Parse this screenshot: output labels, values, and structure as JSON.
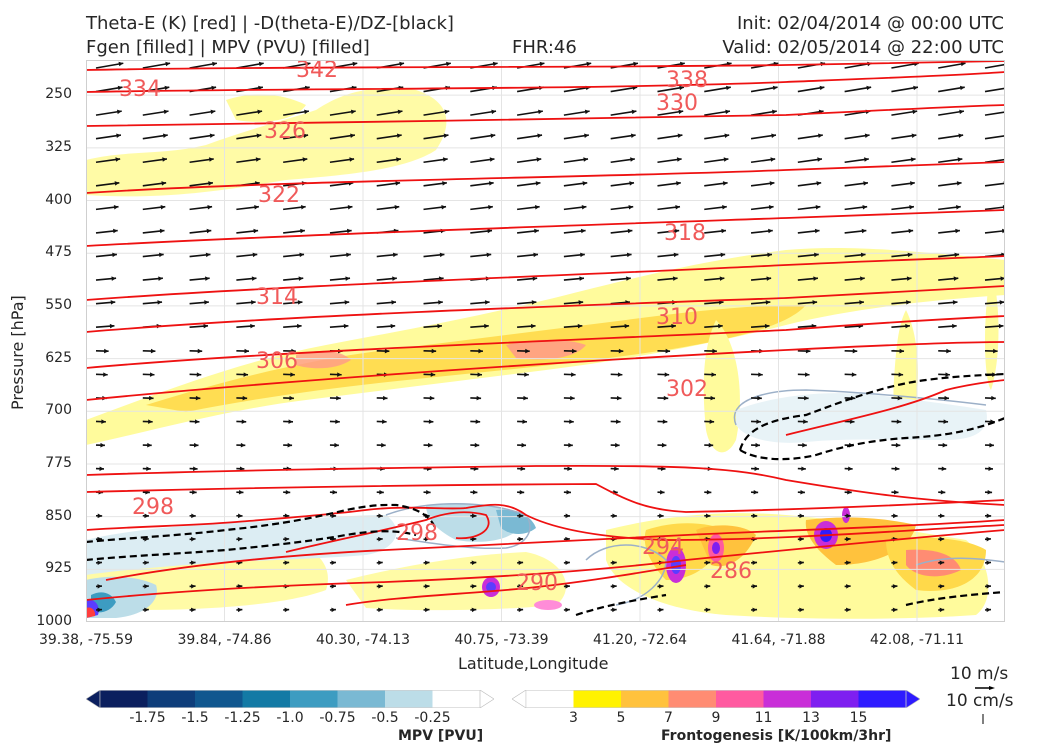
{
  "header": {
    "title_left_1": "Theta-E (K) [red] | -D(theta-E)/DZ-[black]",
    "title_left_2": "Fgen [filled] | MPV (PVU) [filled]",
    "title_center": "FHR:46",
    "title_right_1": "Init: 02/04/2014 @ 00:00 UTC",
    "title_right_2": "Valid: 02/05/2014 @ 22:00 UTC"
  },
  "chart_data": {
    "type": "cross-section",
    "xlabel": "Latitude,Longitude",
    "ylabel": "Pressure [hPa]",
    "x_ticks": [
      "39.38, -75.59",
      "39.84, -74.86",
      "40.30, -74.13",
      "40.75, -73.39",
      "41.20, -72.64",
      "41.64, -71.88",
      "42.08, -71.11"
    ],
    "y_ticks": [
      250,
      325,
      400,
      475,
      550,
      625,
      700,
      775,
      850,
      925,
      1000
    ],
    "ylim": [
      1000,
      200
    ],
    "grid": true,
    "theta_e_labels": [
      "334",
      "338",
      "330",
      "326",
      "322",
      "318",
      "314",
      "310",
      "306",
      "302",
      "298",
      "298",
      "294",
      "290",
      "286",
      "342"
    ],
    "vector_reference": {
      "speed_label": "10 m/s",
      "vertical_label": "10 cm/s"
    },
    "mpv_colorbar": {
      "label": "MPV [PVU]",
      "ticks": [
        "-1.75",
        "-1.5",
        "-1.25",
        "-1.0",
        "-0.75",
        "-0.5",
        "-0.25"
      ],
      "colors": [
        "#0b1f5e",
        "#0e3d7a",
        "#10578f",
        "#137aa5",
        "#3d9cc1",
        "#7ab9d3",
        "#bcdde8",
        "#ffffff"
      ]
    },
    "fgen_colorbar": {
      "label": "Frontogenesis [K/100km/3hr]",
      "ticks": [
        "3",
        "5",
        "7",
        "9",
        "11",
        "13",
        "15"
      ],
      "colors": [
        "#ffffff",
        "#fff200",
        "#ffc23d",
        "#ff8c73",
        "#ff5aa0",
        "#c92ed8",
        "#7e1ff0",
        "#2e1bff"
      ]
    }
  }
}
